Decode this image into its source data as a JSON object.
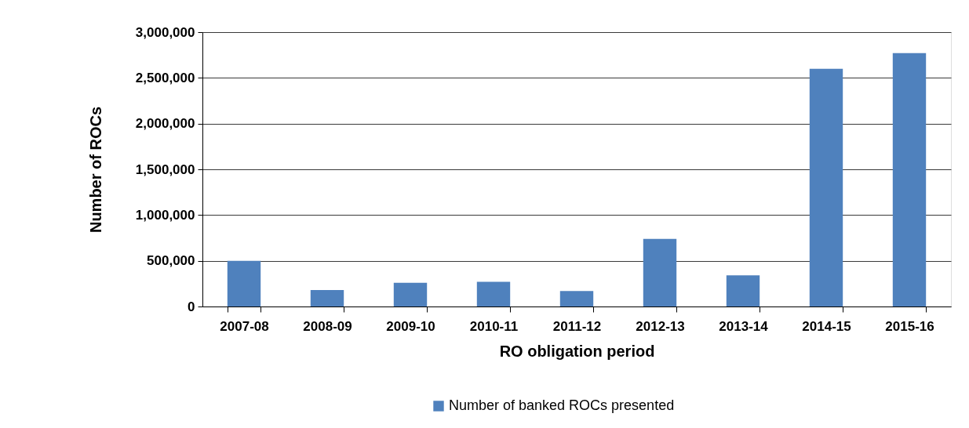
{
  "chart_data": {
    "type": "bar",
    "xlabel": "RO obligation period",
    "ylabel": "Number of ROCs",
    "categories": [
      "2007-08",
      "2008-09",
      "2009-10",
      "2010-11",
      "2011-12",
      "2012-13",
      "2013-14",
      "2014-15",
      "2015-16"
    ],
    "series": [
      {
        "name": "Number of banked ROCs presented",
        "color": "#4f81bd",
        "values": [
          500000,
          180000,
          260000,
          270000,
          170000,
          740000,
          340000,
          2600000,
          2770000
        ]
      }
    ],
    "ylim": [
      0,
      3000000
    ],
    "yticks": [
      0,
      {
        "value": 500000,
        "label": "500,000"
      },
      {
        "value": 1000000,
        "label": "1,000,000"
      },
      {
        "value": 1500000,
        "label": "1,500,000"
      },
      {
        "value": 2000000,
        "label": "2,000,000"
      },
      {
        "value": 2500000,
        "label": "2,500,000"
      },
      {
        "value": 3000000,
        "label": "3,000,000"
      }
    ],
    "grid": "y",
    "legend": "bottom"
  }
}
